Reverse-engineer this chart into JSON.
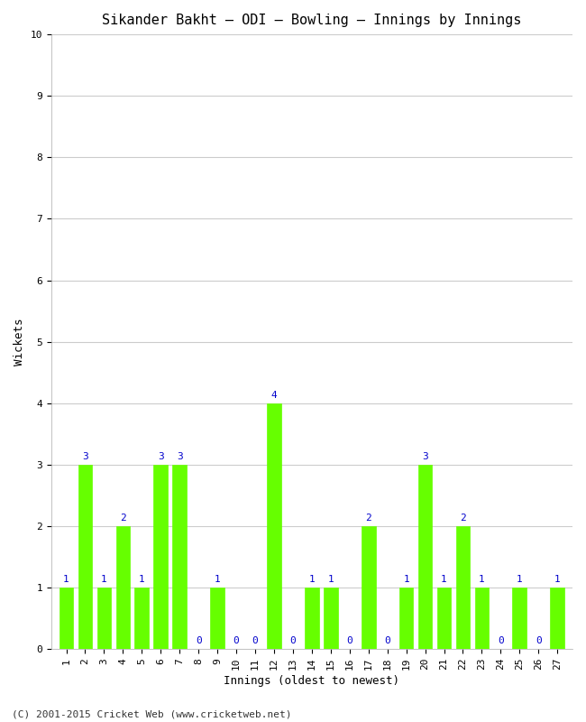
{
  "title": "Sikander Bakht – ODI – Bowling – Innings by Innings",
  "xlabel": "Innings (oldest to newest)",
  "ylabel": "Wickets",
  "innings": [
    1,
    2,
    3,
    4,
    5,
    6,
    7,
    8,
    9,
    10,
    11,
    12,
    13,
    14,
    15,
    16,
    17,
    18,
    19,
    20,
    21,
    22,
    23,
    24,
    25,
    26,
    27
  ],
  "wickets": [
    1,
    3,
    1,
    2,
    1,
    3,
    3,
    0,
    1,
    0,
    0,
    4,
    0,
    1,
    1,
    0,
    2,
    0,
    1,
    3,
    1,
    2,
    1,
    0,
    1,
    0,
    1
  ],
  "bar_color": "#66ff00",
  "label_color": "#0000cc",
  "ylim": [
    0,
    10
  ],
  "yticks": [
    0,
    1,
    2,
    3,
    4,
    5,
    6,
    7,
    8,
    9,
    10
  ],
  "bg_color": "#ffffff",
  "grid_color": "#cccccc",
  "title_fontsize": 11,
  "axis_label_fontsize": 9,
  "bar_label_fontsize": 8,
  "tick_fontsize": 8,
  "footer": "(C) 2001-2015 Cricket Web (www.cricketweb.net)",
  "footer_fontsize": 8
}
